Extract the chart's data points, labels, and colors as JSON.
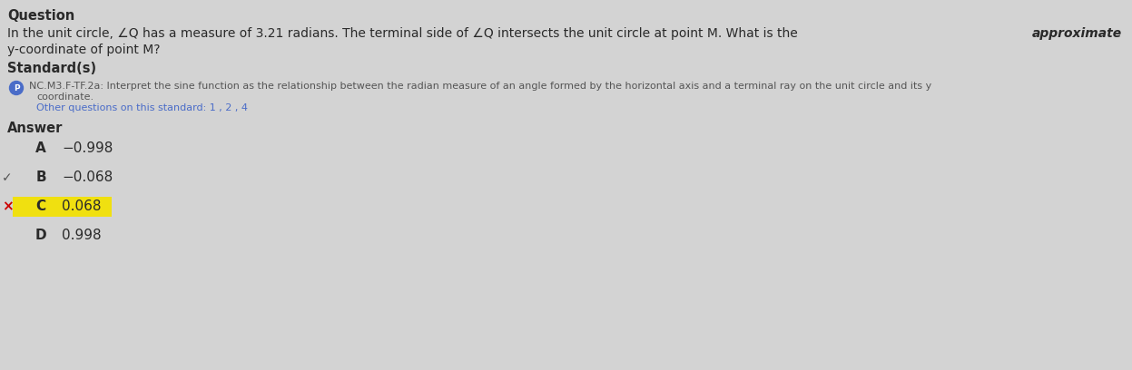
{
  "background_color": "#d3d3d3",
  "title": "Question",
  "question_line1_before_bold": "In the unit circle, ∠Q has a measure of 3.21 radians. The terminal side of ∠Q intersects the unit circle at point M. What is the ",
  "question_line1_bold": "approximate",
  "question_line2": "y-coordinate of point M?",
  "standards_title": "Standard(s)",
  "standard_icon_color": "#4a6cc8",
  "standard_icon_label": "P",
  "standard_text_part1": "NC.M3.F-TF.2a: Interpret the sine function as the relationship between the radian measure of an angle formed by the horizontal axis and a terminal ray on the unit circle and its y",
  "standard_text_part2": "coordinate.",
  "standard_other": "Other questions on this standard: 1 , 2 , 4",
  "answer_title": "Answer",
  "answers": [
    {
      "letter": "A",
      "value": "−0.998",
      "highlight": false,
      "correct": false,
      "selected": false
    },
    {
      "letter": "B",
      "value": "−0.068",
      "highlight": false,
      "correct": true,
      "selected": false
    },
    {
      "letter": "C",
      "value": "0.068",
      "highlight": true,
      "correct": false,
      "selected": true
    },
    {
      "letter": "D",
      "value": "0.998",
      "highlight": false,
      "correct": false,
      "selected": false
    }
  ],
  "highlight_color": "#f0e010",
  "wrong_mark_color": "#cc0000",
  "correct_mark_color": "#555555",
  "text_color": "#2a2a2a",
  "standard_text_color": "#555555",
  "link_color": "#4a6cc8",
  "font_size_title": 10.5,
  "font_size_question": 10,
  "font_size_standard": 8.0,
  "font_size_answer": 11,
  "figwidth": 12.47,
  "figheight": 4.08,
  "dpi": 100
}
